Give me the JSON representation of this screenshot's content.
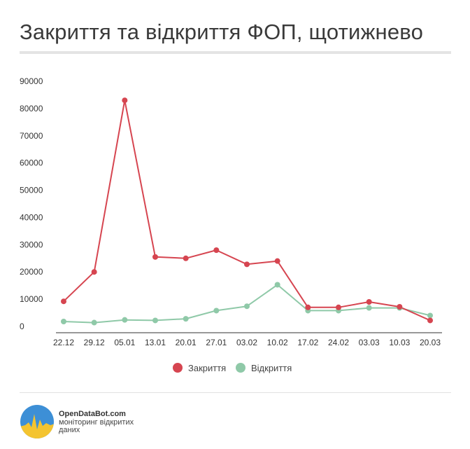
{
  "page": {
    "title": "Закриття та відкриття ФОП, щотижнево",
    "brand": {
      "name": "OpenDataBot.com",
      "tagline": "моніторинг відкритих даних"
    }
  },
  "chart_data": {
    "type": "line",
    "title": "Закриття та відкриття ФОП, щотижнево",
    "xlabel": "",
    "ylabel": "",
    "categories": [
      "22.12",
      "29.12",
      "05.01",
      "13.01",
      "20.01",
      "27.01",
      "03.02",
      "10.02",
      "17.02",
      "24.02",
      "03.03",
      "10.03",
      "20.03"
    ],
    "ylim": [
      0,
      90000
    ],
    "yticks": [
      0,
      10000,
      20000,
      30000,
      40000,
      50000,
      60000,
      70000,
      80000,
      90000
    ],
    "grid": false,
    "legend": "bottom",
    "series": [
      {
        "name": "Закриття",
        "color": "#d64550",
        "values": [
          9200,
          20000,
          83000,
          25500,
          25000,
          28000,
          22800,
          24000,
          7000,
          7000,
          9000,
          7200,
          2200
        ]
      },
      {
        "name": "Відкриття",
        "color": "#8fc9a8",
        "values": [
          1800,
          1400,
          2400,
          2200,
          2800,
          5800,
          7400,
          15300,
          5800,
          5800,
          6800,
          6800,
          4000
        ]
      }
    ]
  }
}
